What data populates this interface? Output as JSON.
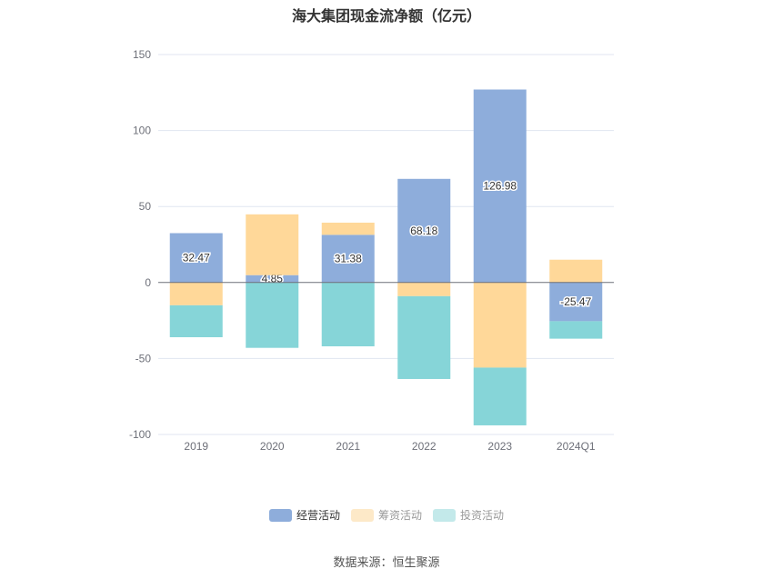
{
  "chart_data": {
    "type": "bar",
    "stacked": true,
    "title": "海大集团现金流净额（亿元）",
    "categories": [
      "2019",
      "2020",
      "2021",
      "2022",
      "2023",
      "2024Q1"
    ],
    "ylim": [
      -100,
      150
    ],
    "yticks": [
      -100,
      -50,
      0,
      50,
      100,
      150
    ],
    "grid": true,
    "legend_position": "bottom",
    "series": [
      {
        "name": "经营活动",
        "color": "#8eaddb",
        "values": [
          32.47,
          4.85,
          31.38,
          68.18,
          126.98,
          -25.47
        ],
        "labeled": true
      },
      {
        "name": "筹资活动",
        "color": "#ffd899",
        "values": [
          -15,
          40,
          8,
          -9,
          -56,
          15
        ]
      },
      {
        "name": "投资活动",
        "color": "#86d5d8",
        "values": [
          -21,
          -43,
          -42,
          -54.5,
          -38,
          -11.5
        ]
      }
    ]
  },
  "legend_colors": [
    "#8eaddb",
    "#fde9c8",
    "#c3e9ea"
  ],
  "source": "数据来源：恒生聚源"
}
